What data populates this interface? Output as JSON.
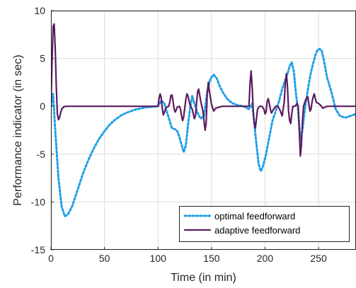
{
  "chart_data": {
    "type": "line",
    "title": "",
    "xlabel": "Time (in min)",
    "ylabel": "Performance indicator (in sec)",
    "xlim": [
      0,
      285
    ],
    "ylim": [
      -15,
      10
    ],
    "xticks": [
      0,
      50,
      100,
      150,
      200,
      250
    ],
    "yticks": [
      -15,
      -10,
      -5,
      0,
      5,
      10
    ],
    "grid": true,
    "legend_position": "bottom-right",
    "series": [
      {
        "name": "optimal feedforward",
        "style": "dotted",
        "color": "#1f9fe8",
        "x": [
          0,
          2,
          4,
          7,
          10,
          13,
          16,
          20,
          25,
          30,
          35,
          40,
          45,
          50,
          55,
          60,
          65,
          70,
          75,
          80,
          85,
          90,
          95,
          100,
          103,
          106,
          108,
          110,
          113,
          116,
          118,
          120,
          122,
          124,
          126,
          128,
          130,
          132,
          134,
          137,
          140,
          143,
          146,
          149,
          152,
          155,
          158,
          162,
          166,
          170,
          175,
          180,
          185,
          188,
          190,
          192,
          194,
          196,
          198,
          201,
          204,
          207,
          210,
          213,
          216,
          219,
          221,
          223,
          225,
          227,
          229,
          231,
          233,
          235,
          237,
          239,
          241,
          243,
          245,
          247,
          249,
          251,
          253,
          255,
          258,
          262,
          266,
          270,
          275,
          280,
          285
        ],
        "y": [
          0,
          1.3,
          -2.5,
          -7.5,
          -10.5,
          -11.5,
          -11.3,
          -10.4,
          -8.7,
          -7.0,
          -5.6,
          -4.4,
          -3.4,
          -2.6,
          -1.9,
          -1.4,
          -1.0,
          -0.7,
          -0.5,
          -0.3,
          -0.2,
          -0.1,
          -0.05,
          0,
          0.6,
          0.3,
          -0.5,
          -1.2,
          -2.3,
          -2.4,
          -2.6,
          -3.2,
          -4.0,
          -4.8,
          -4.1,
          -2.0,
          -0.2,
          1.1,
          0.3,
          -0.7,
          -1.3,
          -1.0,
          1.5,
          2.9,
          3.3,
          2.9,
          2.0,
          1.2,
          0.6,
          0.3,
          0.1,
          0,
          -0.3,
          0.3,
          -1.8,
          -4.0,
          -6.0,
          -6.8,
          -6.3,
          -5.0,
          -3.2,
          -1.5,
          -0.5,
          0.5,
          1.8,
          2.8,
          3.4,
          4.2,
          4.6,
          3.6,
          1.2,
          -0.5,
          -3.5,
          -2.5,
          -0.5,
          1.0,
          2.4,
          3.6,
          4.5,
          5.3,
          5.9,
          6.0,
          5.8,
          4.8,
          3.0,
          1.5,
          -0.3,
          -1.0,
          -1.2,
          -1.0,
          -0.8
        ]
      },
      {
        "name": "adaptive feedforward",
        "style": "solid",
        "color": "#5c1a5e",
        "x": [
          0,
          1,
          2,
          3,
          4,
          5,
          6,
          7,
          8,
          9,
          10,
          12,
          14,
          17,
          20,
          30,
          40,
          50,
          60,
          70,
          80,
          90,
          100,
          101,
          102,
          103,
          104,
          105,
          106,
          107,
          108,
          110,
          111,
          112,
          113,
          114,
          115,
          116,
          117,
          118,
          120,
          121,
          122,
          123,
          124,
          125,
          126,
          127,
          128,
          130,
          132,
          133,
          134,
          135,
          136,
          137,
          138,
          140,
          142,
          143,
          144,
          145,
          146,
          147,
          148,
          150,
          152,
          154,
          160,
          170,
          180,
          185,
          186,
          187,
          188,
          189,
          190,
          191,
          192,
          193,
          195,
          197,
          199,
          200,
          201,
          202,
          203,
          204,
          205,
          206,
          208,
          210,
          212,
          214,
          216,
          218,
          219,
          220,
          221,
          222,
          223,
          224,
          225,
          226,
          228,
          230,
          231,
          232,
          233,
          234,
          235,
          236,
          238,
          240,
          241,
          242,
          243,
          244,
          245,
          246,
          247,
          248,
          250,
          252,
          254,
          256,
          258,
          262,
          270,
          285
        ],
        "y": [
          0,
          4.5,
          8.4,
          8.6,
          6.0,
          2.0,
          -0.8,
          -1.4,
          -1.2,
          -0.7,
          -0.3,
          -0.05,
          0,
          0,
          0,
          0,
          0,
          0,
          0,
          0,
          0,
          0,
          0,
          0.8,
          1.3,
          0.9,
          -0.2,
          -0.9,
          -0.6,
          -0.3,
          -0.1,
          0,
          0.4,
          1.1,
          1.2,
          0.6,
          -0.2,
          -0.6,
          -0.4,
          -0.1,
          0,
          -0.3,
          -1.0,
          -1.5,
          -1.1,
          -0.2,
          0.7,
          1.3,
          1.1,
          0.1,
          -0.3,
          -0.8,
          -1.3,
          -1.0,
          0.3,
          1.5,
          1.8,
          0.5,
          -0.5,
          -1.5,
          -2.5,
          -1.8,
          1.3,
          2.5,
          1.6,
          0.2,
          -0.5,
          -0.2,
          0,
          0,
          0,
          0,
          2.4,
          3.7,
          2.0,
          -0.5,
          -1.8,
          -2.3,
          -1.3,
          -0.3,
          0,
          0,
          -0.3,
          -0.8,
          -0.6,
          0.5,
          0.8,
          0.3,
          -0.3,
          -0.7,
          -0.3,
          0,
          0,
          -0.4,
          -1.0,
          0.5,
          2.5,
          3.4,
          2.0,
          -0.5,
          -1.5,
          -1.8,
          -0.8,
          0,
          0,
          0.3,
          0,
          -2.5,
          -5.2,
          -4.0,
          -1.5,
          0,
          0.7,
          1.0,
          0.2,
          -0.5,
          -0.3,
          0.5,
          1.0,
          1.3,
          0.8,
          0.4,
          0.3,
          0.1,
          -0.2,
          -0.1,
          0,
          0,
          0,
          0
        ]
      }
    ]
  }
}
